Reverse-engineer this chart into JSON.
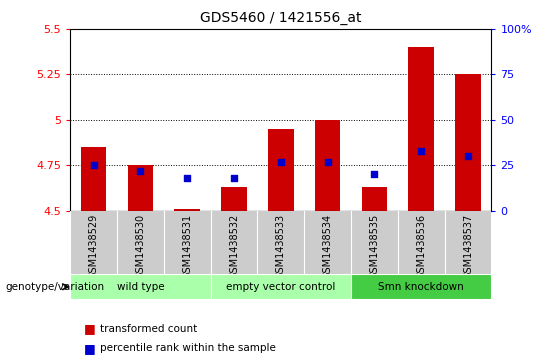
{
  "title": "GDS5460 / 1421556_at",
  "samples": [
    "GSM1438529",
    "GSM1438530",
    "GSM1438531",
    "GSM1438532",
    "GSM1438533",
    "GSM1438534",
    "GSM1438535",
    "GSM1438536",
    "GSM1438537"
  ],
  "transformed_count": [
    4.85,
    4.75,
    4.51,
    4.63,
    4.95,
    5.0,
    4.63,
    5.4,
    5.25
  ],
  "percentile_rank": [
    25,
    22,
    18,
    18,
    27,
    27,
    20,
    33,
    30
  ],
  "ylim_left": [
    4.5,
    5.5
  ],
  "ylim_right": [
    0,
    100
  ],
  "yticks_left": [
    4.5,
    4.75,
    5.0,
    5.25,
    5.5
  ],
  "ytick_labels_left": [
    "4.5",
    "4.75",
    "5",
    "5.25",
    "5.5"
  ],
  "yticks_right": [
    0,
    25,
    50,
    75,
    100
  ],
  "ytick_labels_right": [
    "0",
    "25",
    "50",
    "75",
    "100%"
  ],
  "hlines": [
    4.75,
    5.0,
    5.25
  ],
  "bar_color": "#cc0000",
  "dot_color": "#0000cc",
  "bar_bottom": 4.5,
  "group_defs": [
    {
      "start": 0,
      "end": 2,
      "color": "#aaffaa",
      "label": "wild type"
    },
    {
      "start": 3,
      "end": 5,
      "color": "#aaffaa",
      "label": "empty vector control"
    },
    {
      "start": 6,
      "end": 8,
      "color": "#44cc44",
      "label": "Smn knockdown"
    }
  ],
  "genotype_label": "genotype/variation",
  "legend_bar_label": "transformed count",
  "legend_dot_label": "percentile rank within the sample",
  "sample_bg": "#cccccc",
  "plot_bg": "#ffffff"
}
